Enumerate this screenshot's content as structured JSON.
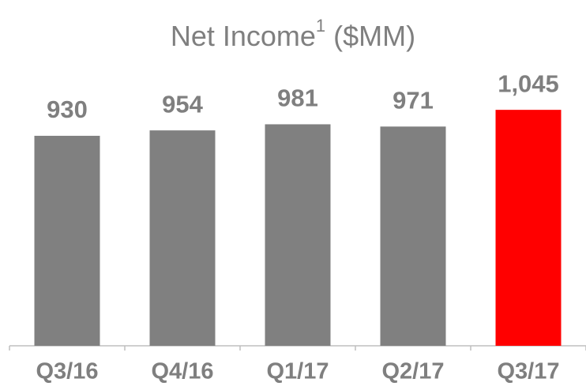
{
  "chart_data": {
    "type": "bar",
    "title": "Net Income",
    "title_superscript": "1",
    "title_unit": "($MM)",
    "categories": [
      "Q3/16",
      "Q4/16",
      "Q1/17",
      "Q2/17",
      "Q3/17"
    ],
    "values": [
      930,
      954,
      981,
      971,
      1045
    ],
    "value_labels": [
      "930",
      "954",
      "981",
      "971",
      "1,045"
    ],
    "colors": [
      "#808080",
      "#808080",
      "#808080",
      "#808080",
      "#ff0000"
    ]
  }
}
